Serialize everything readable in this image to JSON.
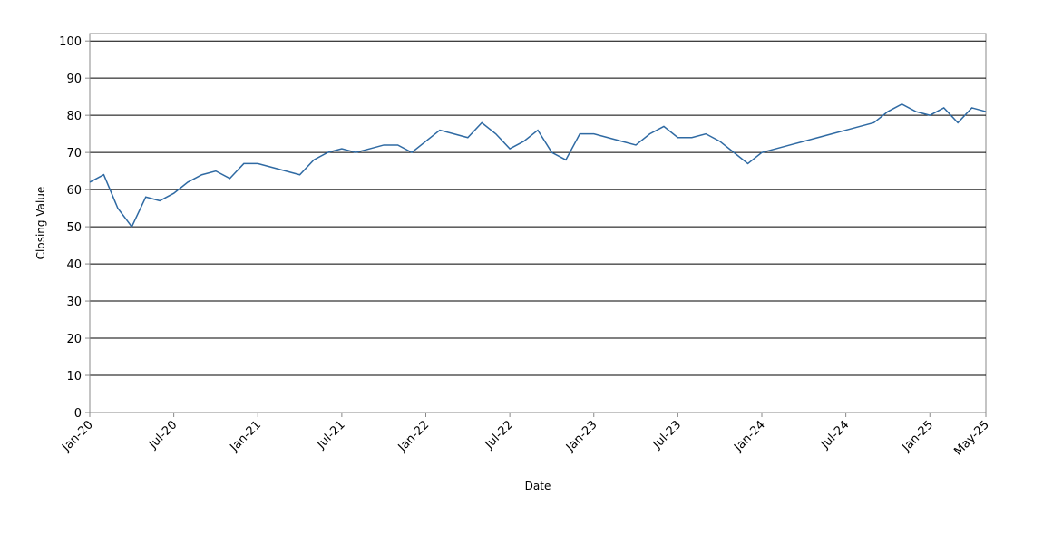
{
  "chart_data": {
    "type": "line",
    "x_label": "Date",
    "y_label": "Closing Value",
    "x": [
      "2020-01",
      "2020-02",
      "2020-03",
      "2020-04",
      "2020-05",
      "2020-06",
      "2020-07",
      "2020-08",
      "2020-09",
      "2020-10",
      "2020-11",
      "2020-12",
      "2021-01",
      "2021-02",
      "2021-03",
      "2021-04",
      "2021-05",
      "2021-06",
      "2021-07",
      "2021-08",
      "2021-09",
      "2021-10",
      "2021-11",
      "2021-12",
      "2022-01",
      "2022-02",
      "2022-03",
      "2022-04",
      "2022-05",
      "2022-06",
      "2022-07",
      "2022-08",
      "2022-09",
      "2022-10",
      "2022-11",
      "2022-12",
      "2023-01",
      "2023-02",
      "2023-03",
      "2023-04",
      "2023-05",
      "2023-06",
      "2023-07",
      "2023-08",
      "2023-09",
      "2023-10",
      "2023-11",
      "2023-12",
      "2024-01",
      "2024-02",
      "2024-03",
      "2024-04",
      "2024-05",
      "2024-06",
      "2024-07",
      "2024-08",
      "2024-09",
      "2024-10",
      "2024-11",
      "2024-12",
      "2025-01",
      "2025-02",
      "2025-03",
      "2025-04",
      "2025-05"
    ],
    "series": [
      {
        "name": "Closing Value",
        "color": "#2f6aa3",
        "values": [
          62,
          64,
          55,
          50,
          58,
          57,
          59,
          62,
          64,
          65,
          63,
          67,
          67,
          66,
          65,
          64,
          68,
          70,
          71,
          70,
          71,
          72,
          72,
          70,
          73,
          76,
          75,
          74,
          78,
          75,
          71,
          73,
          76,
          70,
          68,
          75,
          75,
          74,
          73,
          72,
          75,
          77,
          74,
          74,
          75,
          73,
          70,
          67,
          70,
          71,
          72,
          73,
          74,
          75,
          76,
          77,
          78,
          81,
          83,
          81,
          80,
          82,
          78,
          82,
          81
        ]
      }
    ],
    "xticks": [
      {
        "value": "2020-01",
        "label": "Jan-20"
      },
      {
        "value": "2020-07",
        "label": "Jul-20"
      },
      {
        "value": "2021-01",
        "label": "Jan-21"
      },
      {
        "value": "2021-07",
        "label": "Jul-21"
      },
      {
        "value": "2022-01",
        "label": "Jan-22"
      },
      {
        "value": "2022-07",
        "label": "Jul-22"
      },
      {
        "value": "2023-01",
        "label": "Jan-23"
      },
      {
        "value": "2023-07",
        "label": "Jul-23"
      },
      {
        "value": "2024-01",
        "label": "Jan-24"
      },
      {
        "value": "2024-07",
        "label": "Jul-24"
      },
      {
        "value": "2025-01",
        "label": "Jan-25"
      },
      {
        "value": "2025-05",
        "label": "May-25"
      }
    ],
    "ylim": [
      0,
      102
    ],
    "yticks": [
      0,
      10,
      20,
      30,
      40,
      50,
      60,
      70,
      80,
      90,
      100
    ],
    "grid": true
  }
}
